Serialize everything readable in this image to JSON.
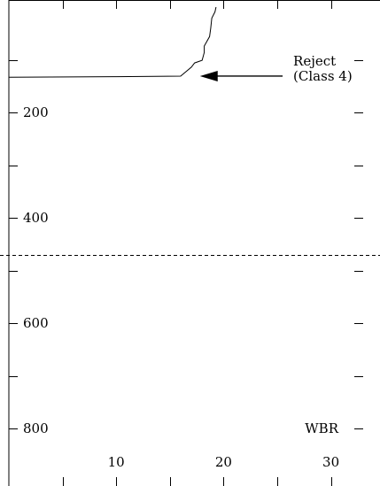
{
  "chart_data": {
    "type": "line",
    "title": "",
    "xlabel": "WBR",
    "ylabel": "",
    "xlim": [
      0,
      35
    ],
    "ylim": [
      0,
      900
    ],
    "y_inverted": true,
    "x_tick_labels": [
      "10",
      "20",
      "30"
    ],
    "x_tick_values": [
      10,
      20,
      30
    ],
    "x_minor_ticks": [
      0,
      5,
      15,
      25,
      35
    ],
    "y_tick_labels": [
      "200",
      "400",
      "600",
      "800"
    ],
    "y_tick_values": [
      200,
      400,
      600,
      800
    ],
    "y_minor_ticks": [
      100,
      300,
      500,
      700
    ],
    "series": [
      {
        "x": [
          0,
          10,
          16,
          17,
          17.3,
          18,
          18.2,
          18.2,
          18.7,
          18.8,
          18.9,
          19.2,
          19.3
        ],
        "y": [
          133,
          132,
          131,
          114,
          106,
          101,
          86,
          74,
          56,
          40,
          21,
          9,
          0
        ]
      }
    ],
    "reference_line": {
      "y": 470,
      "style": "dashed"
    },
    "annotation": {
      "line1": "Reject",
      "line2": "(Class 4)",
      "arrow_from": [
        25.5,
        131
      ],
      "arrow_to": [
        17.8,
        131
      ]
    }
  }
}
